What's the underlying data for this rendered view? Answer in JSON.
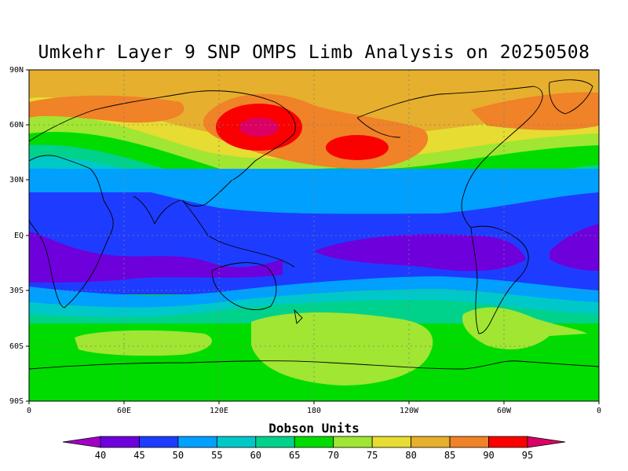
{
  "title": "Umkehr Layer 9 SNP OMPS Limb Analysis on 20250508",
  "map": {
    "lat_ticks": [
      "90N",
      "60N",
      "30N",
      "EQ",
      "30S",
      "60S",
      "90S"
    ],
    "lon_ticks": [
      "0",
      "60E",
      "120E",
      "180",
      "120W",
      "60W",
      "0"
    ],
    "grid": true,
    "projection": "cylindrical equidistant"
  },
  "colorbar": {
    "title": "Dobson Units",
    "levels": [
      "40",
      "45",
      "50",
      "55",
      "60",
      "65",
      "70",
      "75",
      "80",
      "85",
      "90",
      "95"
    ],
    "colors": [
      "#a000c8",
      "#6e00dc",
      "#1e3cff",
      "#00a0ff",
      "#00c8c8",
      "#00d28c",
      "#00dc00",
      "#a0e632",
      "#e6dc32",
      "#e6af2d",
      "#f08228",
      "#fa0000",
      "#dc0064"
    ]
  }
}
